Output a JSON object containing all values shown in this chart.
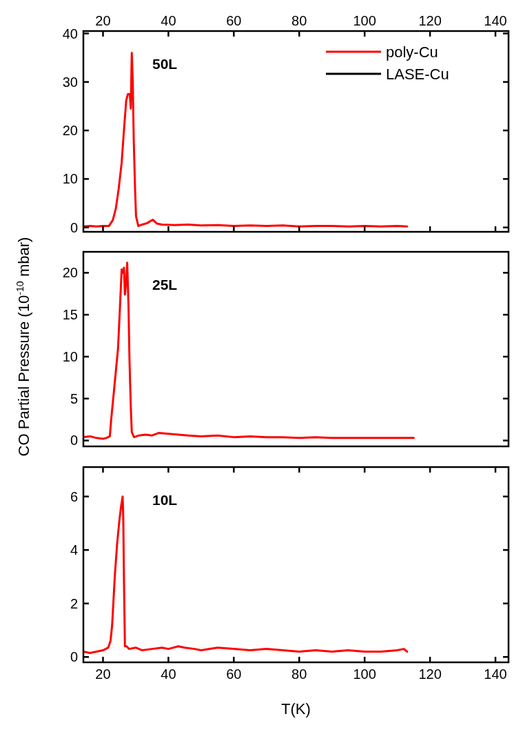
{
  "chart_data": [
    {
      "type": "line",
      "annotations": [
        "50L"
      ],
      "xlim": [
        14,
        144
      ],
      "ylim": [
        -0.9,
        40.5
      ],
      "yticks": [
        0,
        10,
        20,
        30,
        40
      ],
      "x2lim": [
        14,
        144
      ],
      "x2ticks": [
        20,
        40,
        60,
        80,
        100,
        120,
        140
      ],
      "tick_labels": "y",
      "legend": "top right",
      "line_style": "solid",
      "marker": "none",
      "grid": false,
      "series": [
        {
          "name": "poly-Cu",
          "color": "#ff0000",
          "x": [
            14,
            16,
            18,
            20,
            21.8,
            23,
            23.9,
            24.8,
            25.7,
            26.4,
            27.1,
            27.6,
            28.2,
            28.5,
            28.8,
            29.1,
            29.4,
            29.8,
            30.1,
            30.8,
            32,
            33.5,
            35.2,
            36.5,
            38,
            42,
            46,
            50,
            55,
            60,
            65,
            70,
            75,
            80,
            85,
            90,
            95,
            100,
            105,
            110,
            113
          ],
          "values": [
            0.2,
            0.3,
            0.2,
            0.3,
            0.3,
            1.5,
            3.8,
            8,
            13.3,
            20,
            26.2,
            27.5,
            27.5,
            24.5,
            36,
            30,
            18.1,
            8,
            2.3,
            0.3,
            0.6,
            0.9,
            1.6,
            0.8,
            0.6,
            0.5,
            0.6,
            0.4,
            0.5,
            0.3,
            0.4,
            0.3,
            0.4,
            0.2,
            0.3,
            0.3,
            0.2,
            0.3,
            0.2,
            0.3,
            0.2
          ]
        },
        {
          "name": "LASE-Cu",
          "color": "#000000"
        }
      ]
    },
    {
      "type": "line",
      "annotations": [
        "25L"
      ],
      "xlim": [
        14,
        144
      ],
      "ylim": [
        -0.7,
        22.5
      ],
      "yticks": [
        0,
        5,
        10,
        15,
        20
      ],
      "tick_labels": "y",
      "ylabel": "CO Partial Pressure (10$^{-10}$ mbar)",
      "line_style": "solid",
      "marker": "none",
      "grid": false,
      "series": [
        {
          "color": "#ff0000",
          "x": [
            14,
            16,
            18,
            20,
            21,
            22.1,
            22.5,
            23.5,
            24.6,
            25.2,
            25.7,
            26.1,
            26.4,
            26.7,
            27.1,
            27.4,
            27.8,
            28.1,
            28.5,
            28.8,
            29.5,
            31,
            33,
            35,
            37,
            40,
            43,
            46,
            50,
            55,
            60,
            65,
            70,
            75,
            80,
            85,
            90,
            95,
            100,
            105,
            110,
            115
          ],
          "values": [
            0.4,
            0.5,
            0.3,
            0.2,
            0.3,
            0.5,
            2.5,
            6.5,
            11,
            16,
            20.4,
            20,
            20.6,
            17.4,
            19,
            21.2,
            16,
            9.6,
            4,
            1,
            0.4,
            0.6,
            0.7,
            0.6,
            0.9,
            0.8,
            0.7,
            0.6,
            0.5,
            0.6,
            0.4,
            0.5,
            0.4,
            0.4,
            0.3,
            0.4,
            0.3,
            0.3,
            0.3,
            0.3,
            0.3,
            0.3
          ]
        }
      ]
    },
    {
      "type": "line",
      "annotations": [
        "10L"
      ],
      "xlim": [
        14,
        144
      ],
      "xticks": [
        20,
        40,
        60,
        80,
        100,
        120,
        140
      ],
      "ylim": [
        -0.2,
        7.1
      ],
      "yticks": [
        0,
        2,
        4,
        6
      ],
      "xlabel": "T(K)",
      "line_style": "solid",
      "marker": "none",
      "grid": false,
      "series": [
        {
          "color": "#ff0000",
          "x": [
            14,
            16,
            18,
            20,
            21.6,
            22.3,
            22.8,
            23.6,
            24.3,
            25,
            25.5,
            26,
            26.2,
            26.4,
            26.7,
            27.2,
            28,
            30,
            32,
            35,
            38,
            40,
            43,
            45,
            48,
            50,
            55,
            60,
            65,
            70,
            75,
            80,
            85,
            90,
            95,
            100,
            105,
            110,
            112,
            113
          ],
          "values": [
            0.2,
            0.15,
            0.2,
            0.25,
            0.35,
            0.6,
            1.2,
            3,
            4.2,
            5.1,
            5.6,
            6,
            5.2,
            3,
            0.4,
            0.4,
            0.3,
            0.35,
            0.25,
            0.3,
            0.35,
            0.3,
            0.4,
            0.35,
            0.3,
            0.25,
            0.35,
            0.3,
            0.25,
            0.3,
            0.25,
            0.2,
            0.25,
            0.2,
            0.25,
            0.2,
            0.2,
            0.25,
            0.3,
            0.2
          ]
        }
      ]
    }
  ]
}
